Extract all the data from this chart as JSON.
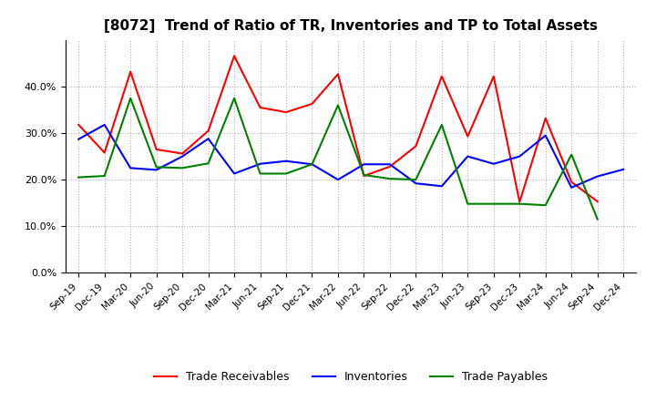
{
  "title": "[8072]  Trend of Ratio of TR, Inventories and TP to Total Assets",
  "x_labels": [
    "Sep-19",
    "Dec-19",
    "Mar-20",
    "Jun-20",
    "Sep-20",
    "Dec-20",
    "Mar-21",
    "Jun-21",
    "Sep-21",
    "Dec-21",
    "Mar-22",
    "Jun-22",
    "Sep-22",
    "Dec-22",
    "Mar-23",
    "Jun-23",
    "Sep-23",
    "Dec-23",
    "Mar-24",
    "Jun-24",
    "Sep-24",
    "Dec-24"
  ],
  "trade_receivables": [
    0.318,
    0.258,
    0.432,
    0.265,
    0.256,
    0.305,
    0.466,
    0.355,
    0.345,
    0.363,
    0.427,
    0.208,
    0.228,
    0.272,
    0.422,
    0.293,
    0.422,
    0.152,
    0.332,
    0.195,
    0.153,
    null
  ],
  "inventories": [
    0.287,
    0.318,
    0.225,
    0.221,
    0.25,
    0.288,
    0.213,
    0.234,
    0.24,
    0.233,
    0.2,
    0.233,
    0.233,
    0.192,
    0.186,
    0.25,
    0.234,
    0.25,
    0.295,
    0.183,
    0.207,
    0.222
  ],
  "trade_payables": [
    0.205,
    0.208,
    0.375,
    0.227,
    0.225,
    0.235,
    0.375,
    0.213,
    0.213,
    0.233,
    0.36,
    0.21,
    0.202,
    0.2,
    0.318,
    0.148,
    0.148,
    0.148,
    0.145,
    0.254,
    0.115,
    null
  ],
  "tr_color": "#ff0000",
  "inv_color": "#0000ff",
  "tp_color": "#008000",
  "ylim": [
    0.0,
    0.5
  ],
  "yticks": [
    0.0,
    0.1,
    0.2,
    0.3,
    0.4
  ],
  "background_color": "#ffffff",
  "grid_color": "#b0b0b0"
}
